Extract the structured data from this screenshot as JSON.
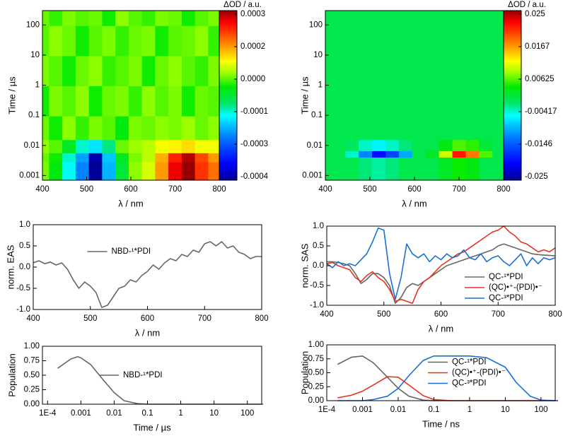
{
  "chart_data": [
    {
      "type": "heatmap",
      "xlabel": "λ / nm",
      "ylabel": "Time / µs",
      "colorbar_label": "ΔOD / a.u.",
      "xlim": [
        400,
        800
      ],
      "xticks": [
        400,
        500,
        600,
        700,
        800
      ],
      "ylim": [
        0.0007,
        300
      ],
      "yscale": "log",
      "yticks": [
        0.001,
        0.01,
        0.1,
        1,
        10,
        100
      ],
      "cticks": [
        0.0003,
        0.0002,
        {
          "value": 0,
          "label": "0.0000"
        },
        -0.0001,
        -0.0003,
        -0.0004
      ],
      "x": [
        400,
        430,
        460,
        490,
        520,
        550,
        580,
        610,
        640,
        670,
        700,
        730,
        760,
        790
      ],
      "y": [
        0.002,
        0.004,
        0.008,
        0.03,
        0.3,
        3,
        30,
        300
      ],
      "z": [
        [
          2e-05,
          -3e-05,
          -0.00012,
          -0.00025,
          -0.00042,
          -0.0002,
          -5e-05,
          3e-05,
          8e-05,
          0.0002,
          0.00028,
          0.00032,
          0.00025,
          0.00022
        ],
        [
          1e-05,
          -2e-05,
          -0.0001,
          -0.00022,
          -0.0004,
          -0.00018,
          -4e-05,
          2e-05,
          6e-05,
          0.00018,
          0.00026,
          0.0003,
          0.00024,
          0.0002
        ],
        [
          3e-05,
          0,
          -4e-05,
          -0.0001,
          -0.00015,
          -8e-05,
          1e-05,
          4e-05,
          6e-05,
          0.0001,
          0.00012,
          0.00014,
          0.0001,
          0.0001
        ],
        [
          1e-05,
          -2e-05,
          3e-05,
          -1e-05,
          2e-05,
          0,
          -3e-05,
          2e-05,
          1e-05,
          3e-05,
          2e-05,
          4e-05,
          1e-05,
          3e-05
        ],
        [
          -2e-05,
          2e-05,
          0,
          3e-05,
          -2e-05,
          1e-05,
          2e-05,
          -1e-05,
          3e-05,
          0,
          2e-05,
          -2e-05,
          1e-05,
          0
        ],
        [
          2e-05,
          0,
          -2e-05,
          1e-05,
          3e-05,
          -1e-05,
          0,
          2e-05,
          -2e-05,
          1e-05,
          3e-05,
          0,
          -1e-05,
          2e-05
        ],
        [
          0,
          3e-05,
          1e-05,
          -2e-05,
          0,
          2e-05,
          -1e-05,
          1e-05,
          2e-05,
          -2e-05,
          0,
          1e-05,
          3e-05,
          -1e-05
        ],
        [
          1e-05,
          -1e-05,
          2e-05,
          0,
          1e-05,
          -2e-05,
          3e-05,
          0,
          -1e-05,
          2e-05,
          1e-05,
          -2e-05,
          0,
          2e-05
        ]
      ]
    },
    {
      "type": "heatmap",
      "xlabel": "λ / nm",
      "ylabel": "Time / µs",
      "colorbar_label": "ΔOD / a.u.",
      "xlim": [
        400,
        800
      ],
      "xticks": [
        400,
        500,
        600,
        700,
        800
      ],
      "ylim": [
        0.0007,
        300
      ],
      "yscale": "log",
      "yticks": [
        0.001,
        0.01,
        0.1,
        1,
        10,
        100
      ],
      "cticks": [
        0.025,
        0.0167,
        0.00625,
        -0.00417,
        -0.0146,
        -0.025
      ],
      "x": [
        400,
        430,
        460,
        490,
        520,
        550,
        580,
        610,
        640,
        670,
        700,
        730,
        760,
        790
      ],
      "y": [
        0.003,
        0.0055,
        0.008,
        0.03,
        0.3,
        3,
        30,
        300
      ],
      "z": [
        [
          0,
          0,
          0,
          -0.002,
          -0.003,
          -0.002,
          0,
          0,
          0,
          0.002,
          0.004,
          0.003,
          0,
          0
        ],
        [
          0,
          0,
          -0.004,
          -0.012,
          -0.02,
          -0.016,
          -0.01,
          0,
          0.002,
          0.01,
          0.022,
          0.018,
          0.006,
          0
        ],
        [
          0,
          0,
          -0.001,
          -0.004,
          -0.006,
          -0.004,
          -0.002,
          0,
          0,
          0.003,
          0.006,
          0.005,
          0.001,
          0
        ],
        [
          0,
          0,
          0,
          0,
          0,
          0,
          0,
          0,
          0,
          0,
          0,
          0,
          0,
          0
        ],
        [
          0,
          0,
          0,
          0,
          0,
          0,
          0,
          0,
          0,
          0,
          0,
          0,
          0,
          0
        ],
        [
          0,
          0,
          0,
          0,
          0,
          0,
          0,
          0,
          0,
          0,
          0,
          0,
          0,
          0
        ],
        [
          0,
          0,
          0,
          0,
          0,
          0,
          0,
          0,
          0,
          0,
          0,
          0,
          0,
          0
        ],
        [
          0,
          0,
          0,
          0,
          0,
          0,
          0,
          0,
          0,
          0,
          0,
          0,
          0,
          0
        ]
      ]
    },
    {
      "type": "line",
      "xlabel": "λ / nm",
      "ylabel": "norm. EAS",
      "legend": "top-center",
      "xlim": [
        400,
        800
      ],
      "xticks": [
        400,
        500,
        600,
        700,
        800
      ],
      "ylim": [
        -1,
        1
      ],
      "yticks": [
        {
          "value": -1,
          "label": "-1.0"
        },
        -0.5,
        {
          "value": 0,
          "label": "0.0"
        },
        0.5,
        {
          "value": 1,
          "label": "1.0"
        }
      ],
      "x": [
        400,
        410,
        420,
        430,
        440,
        450,
        460,
        470,
        480,
        490,
        500,
        510,
        520,
        530,
        540,
        550,
        560,
        570,
        580,
        590,
        600,
        610,
        620,
        630,
        640,
        650,
        660,
        670,
        680,
        690,
        700,
        710,
        720,
        730,
        740,
        750,
        760,
        770,
        780,
        790,
        800
      ],
      "series": [
        {
          "name": "NBD-¹*PDI",
          "color": "#666666",
          "values": [
            0.1,
            0.15,
            0.08,
            0.12,
            0.05,
            0.1,
            -0.05,
            -0.3,
            -0.5,
            -0.35,
            -0.45,
            -0.6,
            -0.95,
            -0.9,
            -0.7,
            -0.5,
            -0.45,
            -0.3,
            -0.35,
            -0.2,
            -0.1,
            0.05,
            -0.05,
            0.1,
            0.2,
            0.15,
            0.3,
            0.25,
            0.4,
            0.35,
            0.55,
            0.6,
            0.5,
            0.6,
            0.45,
            0.5,
            0.35,
            0.3,
            0.2,
            0.25,
            0.25
          ]
        }
      ]
    },
    {
      "type": "line",
      "xlabel": "λ / nm",
      "ylabel": "norm. SAS",
      "legend": "bottom-right",
      "xlim": [
        400,
        800
      ],
      "xticks": [
        400,
        500,
        600,
        700,
        800
      ],
      "ylim": [
        -1,
        1
      ],
      "yticks": [
        {
          "value": -1,
          "label": "-1.0"
        },
        -0.5,
        {
          "value": 0,
          "label": "0.0"
        },
        0.5,
        {
          "value": 1,
          "label": "1.0"
        }
      ],
      "x": [
        400,
        410,
        420,
        430,
        440,
        450,
        460,
        470,
        480,
        490,
        500,
        510,
        520,
        530,
        540,
        550,
        560,
        570,
        580,
        590,
        600,
        610,
        620,
        630,
        640,
        650,
        660,
        670,
        680,
        690,
        700,
        710,
        720,
        730,
        740,
        750,
        760,
        770,
        780,
        790,
        800
      ],
      "series": [
        {
          "name": "QC-¹*PDI",
          "color": "#666666",
          "values": [
            0.1,
            0.1,
            0.08,
            0.05,
            0,
            -0.2,
            -0.45,
            -0.35,
            -0.2,
            -0.2,
            -0.3,
            -0.5,
            -0.95,
            -0.8,
            -0.55,
            -0.45,
            -0.5,
            -0.4,
            -0.3,
            -0.2,
            -0.1,
            0,
            0.05,
            0.1,
            0.15,
            0.2,
            0.25,
            0.3,
            0.35,
            0.4,
            0.5,
            0.55,
            0.5,
            0.45,
            0.4,
            0.35,
            0.3,
            0.28,
            0.27,
            0.26,
            0.25
          ]
        },
        {
          "name": "(QC)•⁺-(PDI)•⁻",
          "color": "#e8321e",
          "values": [
            0.05,
            0.08,
            0,
            -0.05,
            -0.1,
            -0.3,
            -0.4,
            -0.25,
            -0.15,
            -0.3,
            -0.4,
            -0.6,
            -0.9,
            -0.85,
            -0.9,
            -0.95,
            -0.6,
            -0.4,
            -0.3,
            -0.15,
            0,
            0.1,
            0.2,
            0.3,
            0.35,
            0.45,
            0.55,
            0.65,
            0.75,
            0.85,
            0.9,
            1,
            0.85,
            0.75,
            0.6,
            0.55,
            0.45,
            0.35,
            0.4,
            0.35,
            0.45
          ]
        },
        {
          "name": "QC-³*PDI",
          "color": "#1a6fd6",
          "values": [
            0.05,
            -0.05,
            0.1,
            0,
            0.05,
            0,
            0.15,
            0.3,
            0.6,
            0.95,
            0.9,
            -0.2,
            -0.85,
            -0.3,
            0.55,
            0.3,
            0.2,
            0.3,
            0.1,
            0.25,
            0.15,
            0.3,
            0.2,
            0.25,
            0.4,
            0.2,
            0.15,
            0.3,
            0.1,
            0.2,
            0.25,
            0.1,
            0,
            0.15,
            0.3,
            0,
            0.2,
            0.05,
            0.2,
            0.15,
            0.2
          ]
        }
      ]
    },
    {
      "type": "line",
      "xlabel": "Time / µs",
      "ylabel": "Population",
      "legend": "center",
      "xlim": [
        7e-05,
        270
      ],
      "xscale": "log",
      "xticks": [
        {
          "value": 0.0001,
          "label": "1E-4"
        },
        0.001,
        0.01,
        0.1,
        1,
        10,
        100
      ],
      "ylim": [
        0,
        1
      ],
      "yticks": [
        {
          "value": 0,
          "label": "0.00"
        },
        0.25,
        {
          "value": 0.5,
          "label": "0.50"
        },
        0.75,
        {
          "value": 1,
          "label": "1.00"
        }
      ],
      "x": [
        0.0002,
        0.0005,
        0.0008,
        0.001,
        0.002,
        0.005,
        0.01,
        0.02,
        0.05,
        0.1,
        1,
        10,
        300
      ],
      "series": [
        {
          "name": "NBD-¹*PDI",
          "color": "#666666",
          "values": [
            0.62,
            0.78,
            0.82,
            0.8,
            0.68,
            0.4,
            0.2,
            0.06,
            0.01,
            0,
            0,
            0,
            0
          ]
        }
      ]
    },
    {
      "type": "line",
      "xlabel": "Time / ns",
      "ylabel": "Population",
      "legend": "center-right",
      "xlim": [
        0.0001,
        250
      ],
      "xscale": "log",
      "xticks": [
        {
          "value": 0.0001,
          "label": "1E-4"
        },
        0.001,
        0.01,
        0.1,
        1,
        10,
        100
      ],
      "ylim": [
        0,
        1
      ],
      "yticks": [
        {
          "value": 0,
          "label": "0.00"
        },
        0.25,
        {
          "value": 0.5,
          "label": "0.50"
        },
        0.75,
        {
          "value": 1,
          "label": "1.00"
        }
      ],
      "x": [
        0.0002,
        0.0005,
        0.001,
        0.002,
        0.005,
        0.01,
        0.02,
        0.05,
        0.1,
        0.3,
        1,
        3,
        10,
        20,
        50,
        100,
        300
      ],
      "series": [
        {
          "name": "QC-¹*PDI",
          "color": "#666666",
          "values": [
            0.65,
            0.78,
            0.8,
            0.68,
            0.42,
            0.22,
            0.08,
            0.01,
            0,
            0,
            0,
            0,
            0,
            0,
            0,
            0,
            0
          ]
        },
        {
          "name": "(QC)•⁺-(PDI)•⁻",
          "color": "#e8321e",
          "values": [
            0.05,
            0.1,
            0.17,
            0.28,
            0.43,
            0.42,
            0.28,
            0.09,
            0.02,
            0,
            0,
            0,
            0,
            0,
            0,
            0,
            0
          ]
        },
        {
          "name": "QC-³*PDI",
          "color": "#1a6fd6",
          "values": [
            0,
            0,
            0,
            0.02,
            0.08,
            0.22,
            0.45,
            0.72,
            0.8,
            0.8,
            0.8,
            0.77,
            0.6,
            0.33,
            0.08,
            0.01,
            0
          ]
        }
      ]
    }
  ]
}
